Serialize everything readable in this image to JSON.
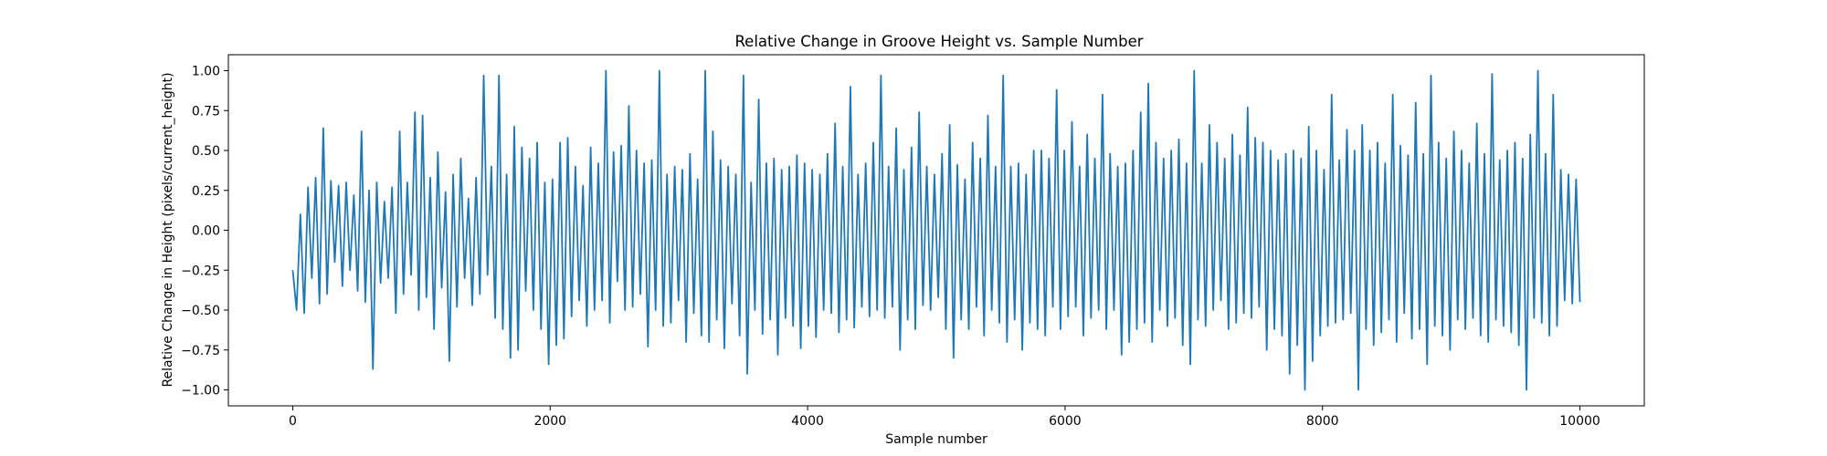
{
  "chart_data": {
    "type": "line",
    "title": "Relative Change in Groove Height vs. Sample Number",
    "xlabel": "Sample number",
    "ylabel": "Relative Change in Height (pixels/current_height)",
    "xlim": [
      -500,
      10500
    ],
    "ylim": [
      -1.1,
      1.1
    ],
    "x_ticks": [
      0,
      2000,
      4000,
      6000,
      8000,
      10000
    ],
    "x_tick_labels": [
      "0",
      "2000",
      "4000",
      "6000",
      "8000",
      "10000"
    ],
    "y_ticks": [
      1.0,
      0.75,
      0.5,
      0.25,
      0.0,
      -0.25,
      -0.5,
      -0.75,
      -1.0
    ],
    "y_tick_labels": [
      "1.00",
      "0.75",
      "0.50",
      "0.25",
      "0.00",
      "−0.25",
      "−0.50",
      "−0.75",
      "−1.00"
    ],
    "grid": false,
    "series": [
      {
        "color": "#1f77b4",
        "x_start": 0,
        "x_end": 10000,
        "num_samples": 10001,
        "values": [
          -0.25,
          -0.5,
          0.1,
          -0.52,
          0.27,
          -0.3,
          0.33,
          -0.46,
          0.64,
          -0.4,
          0.31,
          -0.2,
          0.28,
          -0.35,
          0.3,
          -0.25,
          0.22,
          -0.38,
          0.62,
          -0.45,
          0.25,
          -0.87,
          0.3,
          -0.33,
          0.18,
          -0.3,
          0.27,
          -0.52,
          0.62,
          -0.4,
          0.3,
          -0.28,
          0.74,
          -0.5,
          0.72,
          -0.42,
          0.33,
          -0.62,
          0.49,
          -0.36,
          0.24,
          -0.82,
          0.35,
          -0.48,
          0.45,
          -0.3,
          0.2,
          -0.47,
          0.33,
          -0.4,
          0.97,
          -0.28,
          0.4,
          -0.55,
          0.97,
          -0.62,
          0.35,
          -0.8,
          0.65,
          -0.75,
          0.52,
          -0.38,
          0.45,
          -0.5,
          0.55,
          -0.62,
          0.3,
          -0.84,
          0.32,
          -0.72,
          0.55,
          -0.68,
          0.58,
          -0.54,
          0.4,
          -0.44,
          0.28,
          -0.6,
          0.52,
          -0.5,
          0.42,
          -0.44,
          1.0,
          -0.58,
          0.49,
          -0.32,
          0.53,
          -0.5,
          0.78,
          -0.48,
          0.5,
          -0.4,
          0.42,
          -0.73,
          0.44,
          -0.5,
          1.0,
          -0.6,
          0.35,
          -0.58,
          0.4,
          -0.44,
          0.38,
          -0.7,
          0.48,
          -0.52,
          0.32,
          -0.66,
          1.0,
          -0.7,
          0.62,
          -0.56,
          0.44,
          -0.74,
          0.4,
          -0.46,
          0.35,
          -0.66,
          0.97,
          -0.9,
          0.3,
          -0.5,
          0.82,
          -0.65,
          0.42,
          -0.56,
          0.45,
          -0.78,
          0.38,
          -0.55,
          0.4,
          -0.6,
          0.47,
          -0.74,
          0.42,
          -0.6,
          0.38,
          -0.67,
          0.35,
          -0.5,
          0.48,
          -0.52,
          0.67,
          -0.64,
          0.4,
          -0.56,
          0.9,
          -0.61,
          0.35,
          -0.48,
          0.42,
          -0.54,
          0.55,
          -0.5,
          0.97,
          -0.55,
          0.4,
          -0.48,
          0.64,
          -0.75,
          0.38,
          -0.56,
          0.52,
          -0.62,
          0.74,
          -0.47,
          0.4,
          -0.5,
          0.35,
          -0.42,
          0.48,
          -0.62,
          0.66,
          -0.8,
          0.41,
          -0.56,
          0.32,
          -0.62,
          0.55,
          -0.48,
          0.45,
          -0.66,
          0.72,
          -0.5,
          0.4,
          -0.58,
          0.97,
          -0.7,
          0.4,
          -0.56,
          0.42,
          -0.75,
          0.35,
          -0.58,
          0.5,
          -0.62,
          0.5,
          -0.66,
          0.45,
          -0.48,
          0.88,
          -0.62,
          0.5,
          -0.54,
          0.68,
          -0.48,
          0.4,
          -0.66,
          0.6,
          -0.55,
          0.45,
          -0.5,
          0.85,
          -0.62,
          0.48,
          -0.5,
          0.4,
          -0.78,
          0.42,
          -0.7,
          0.5,
          -0.62,
          0.74,
          -0.58,
          0.92,
          -0.7,
          0.55,
          -0.5,
          0.45,
          -0.6,
          0.5,
          -0.55,
          0.57,
          -0.72,
          0.42,
          -0.84,
          1.0,
          -0.56,
          0.42,
          -0.6,
          0.66,
          -0.5,
          0.55,
          -0.44,
          0.45,
          -0.62,
          0.6,
          -0.58,
          0.47,
          -0.52,
          0.77,
          -0.55,
          0.58,
          -0.48,
          0.55,
          -0.75,
          0.5,
          -0.62,
          0.44,
          -0.66,
          0.48,
          -0.9,
          0.5,
          -0.72,
          0.45,
          -1.0,
          0.65,
          -0.82,
          0.5,
          -0.66,
          0.38,
          -0.6,
          0.85,
          -0.58,
          0.44,
          -0.56,
          0.63,
          -0.52,
          0.5,
          -1.0,
          0.66,
          -0.62,
          0.5,
          -0.72,
          0.55,
          -0.64,
          0.42,
          -0.56,
          0.85,
          -0.7,
          0.53,
          -0.52,
          0.47,
          -0.68,
          0.8,
          -0.62,
          0.48,
          -0.84,
          0.97,
          -0.6,
          0.55,
          -0.66,
          0.45,
          -0.75,
          0.62,
          -0.56,
          0.5,
          -0.62,
          0.42,
          -0.55,
          0.67,
          -0.66,
          0.48,
          -0.7,
          0.98,
          -0.56,
          0.44,
          -0.6,
          0.5,
          -0.64,
          0.55,
          -0.72,
          0.45,
          -1.0,
          0.6,
          -0.55,
          1.0,
          -0.58,
          0.48,
          -0.66,
          0.85,
          -0.6,
          0.38,
          -0.44,
          0.35,
          -0.46,
          0.32,
          -0.45
        ]
      }
    ]
  }
}
